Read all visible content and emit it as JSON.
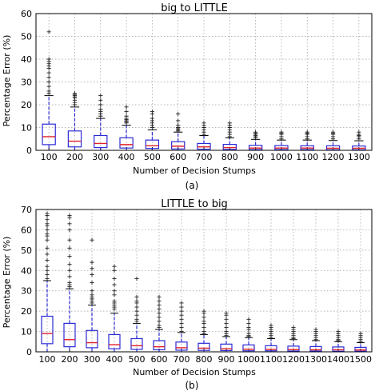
{
  "figure": {
    "caption_a": "(a)",
    "caption_b": "(b)"
  },
  "chart_data": [
    {
      "type": "box",
      "title": "big to LITTLE",
      "xlabel": "Number of Decision Stumps",
      "ylabel": "Percentage Error (%)",
      "ylim": [
        0,
        60
      ],
      "yticks": [
        0,
        10,
        20,
        30,
        40,
        50,
        60
      ],
      "grid": "dotted",
      "categories": [
        "100",
        "200",
        "300",
        "400",
        "500",
        "600",
        "700",
        "800",
        "900",
        "1000",
        "1100",
        "1200",
        "1300"
      ],
      "boxes": [
        {
          "q1": 2.5,
          "median": 6.0,
          "q3": 11.5,
          "whisker_low": 0,
          "whisker_high": 24,
          "outliers": [
            25,
            26,
            28,
            30,
            32,
            34,
            36,
            37,
            38,
            39,
            40,
            52
          ]
        },
        {
          "q1": 1.5,
          "median": 4.0,
          "q3": 8.5,
          "whisker_low": 0,
          "whisker_high": 19,
          "outliers": [
            20,
            21,
            22,
            23,
            23.5,
            24,
            24.5,
            25
          ]
        },
        {
          "q1": 1.2,
          "median": 3.0,
          "q3": 6.5,
          "whisker_low": 0,
          "whisker_high": 14,
          "outliers": [
            15,
            16,
            17,
            18,
            20,
            22,
            24
          ]
        },
        {
          "q1": 1.0,
          "median": 2.5,
          "q3": 5.5,
          "whisker_low": 0,
          "whisker_high": 11,
          "outliers": [
            12,
            12.5,
            13,
            13.5,
            14,
            15,
            17,
            19
          ]
        },
        {
          "q1": 0.8,
          "median": 2.0,
          "q3": 4.5,
          "whisker_low": 0,
          "whisker_high": 9,
          "outliers": [
            10,
            11,
            12,
            13,
            14,
            16,
            17
          ]
        },
        {
          "q1": 0.6,
          "median": 1.8,
          "q3": 3.8,
          "whisker_low": 0,
          "whisker_high": 8,
          "outliers": [
            8.5,
            9,
            9.5,
            10,
            11,
            13,
            16
          ]
        },
        {
          "q1": 0.5,
          "median": 1.5,
          "q3": 3.0,
          "whisker_low": 0,
          "whisker_high": 6.5,
          "outliers": [
            7,
            8,
            9,
            10,
            11,
            12
          ]
        },
        {
          "q1": 0.4,
          "median": 1.2,
          "q3": 2.6,
          "whisker_low": 0,
          "whisker_high": 5.5,
          "outliers": [
            6,
            7,
            8,
            9,
            10,
            11,
            12
          ]
        },
        {
          "q1": 0.3,
          "median": 1.0,
          "q3": 2.2,
          "whisker_low": 0,
          "whisker_high": 4.8,
          "outliers": [
            5.5,
            6,
            6.5,
            7,
            7.5,
            8
          ]
        },
        {
          "q1": 0.3,
          "median": 1.0,
          "q3": 2.1,
          "whisker_low": 0,
          "whisker_high": 4.5,
          "outliers": [
            5,
            6,
            7,
            7.5,
            8
          ]
        },
        {
          "q1": 0.3,
          "median": 1.0,
          "q3": 2.0,
          "whisker_low": 0,
          "whisker_high": 4.5,
          "outliers": [
            5,
            6,
            7,
            7.5,
            8
          ]
        },
        {
          "q1": 0.2,
          "median": 0.9,
          "q3": 2.0,
          "whisker_low": 0,
          "whisker_high": 4.3,
          "outliers": [
            5,
            6,
            7,
            7.5,
            8
          ]
        },
        {
          "q1": 0.2,
          "median": 0.9,
          "q3": 1.9,
          "whisker_low": 0,
          "whisker_high": 4.2,
          "outliers": [
            5,
            6,
            6.5,
            7,
            8
          ]
        }
      ]
    },
    {
      "type": "box",
      "title": "LITTLE to big",
      "xlabel": "Number of Decision Stumps",
      "ylabel": "Percentage Error (%)",
      "ylim": [
        0,
        70
      ],
      "yticks": [
        0,
        10,
        20,
        30,
        40,
        50,
        60,
        70
      ],
      "grid": "dotted",
      "categories": [
        "100",
        "200",
        "300",
        "400",
        "500",
        "600",
        "700",
        "800",
        "900",
        "1000",
        "1100",
        "1200",
        "1300",
        "1400",
        "1500"
      ],
      "boxes": [
        {
          "q1": 4,
          "median": 9,
          "q3": 17.5,
          "whisker_low": 0,
          "whisker_high": 35,
          "outliers": [
            36,
            38,
            40,
            42,
            45,
            48,
            51,
            55,
            57,
            58,
            60,
            62,
            63,
            65,
            67,
            68
          ]
        },
        {
          "q1": 2.5,
          "median": 6,
          "q3": 14,
          "whisker_low": 0,
          "whisker_high": 31,
          "outliers": [
            32,
            33,
            34,
            37,
            40,
            43,
            47,
            51,
            55,
            60,
            63,
            66,
            67
          ]
        },
        {
          "q1": 2,
          "median": 4.5,
          "q3": 10.5,
          "whisker_low": 0,
          "whisker_high": 23,
          "outliers": [
            24,
            25,
            26,
            27,
            28,
            30,
            34,
            38,
            41,
            44,
            55
          ]
        },
        {
          "q1": 1.5,
          "median": 3.5,
          "q3": 8.5,
          "whisker_low": 0,
          "whisker_high": 19,
          "outliers": [
            21,
            22,
            23,
            24,
            25,
            28,
            30,
            33,
            36,
            40,
            42
          ]
        },
        {
          "q1": 1.2,
          "median": 3,
          "q3": 6.5,
          "whisker_low": 0,
          "whisker_high": 14,
          "outliers": [
            15,
            16,
            18,
            20,
            22,
            24,
            25,
            27,
            36
          ]
        },
        {
          "q1": 1,
          "median": 2.5,
          "q3": 5.5,
          "whisker_low": 0,
          "whisker_high": 11,
          "outliers": [
            12,
            13,
            15,
            17,
            19,
            21,
            23,
            25,
            27
          ]
        },
        {
          "q1": 0.8,
          "median": 2,
          "q3": 4.8,
          "whisker_low": 0,
          "whisker_high": 9.5,
          "outliers": [
            10,
            12,
            14,
            16,
            18,
            20,
            22,
            24
          ]
        },
        {
          "q1": 0.7,
          "median": 1.8,
          "q3": 4.2,
          "whisker_low": 0,
          "whisker_high": 8.5,
          "outliers": [
            9,
            10,
            12,
            14,
            15,
            17,
            19,
            20
          ]
        },
        {
          "q1": 0.6,
          "median": 1.5,
          "q3": 3.8,
          "whisker_low": 0,
          "whisker_high": 7.5,
          "outliers": [
            8,
            9,
            10,
            12,
            14,
            16,
            18,
            19
          ]
        },
        {
          "q1": 0.5,
          "median": 1.3,
          "q3": 3.4,
          "whisker_low": 0,
          "whisker_high": 7,
          "outliers": [
            7.5,
            8,
            9,
            11,
            12,
            14,
            16
          ]
        },
        {
          "q1": 0.5,
          "median": 1.2,
          "q3": 3.0,
          "whisker_low": 0,
          "whisker_high": 6.5,
          "outliers": [
            7,
            8,
            9,
            10,
            11,
            12,
            13
          ]
        },
        {
          "q1": 0.4,
          "median": 1.1,
          "q3": 2.8,
          "whisker_low": 0,
          "whisker_high": 6,
          "outliers": [
            6.5,
            7,
            8,
            9,
            10,
            11,
            12
          ]
        },
        {
          "q1": 0.4,
          "median": 1.0,
          "q3": 2.6,
          "whisker_low": 0,
          "whisker_high": 5.5,
          "outliers": [
            6,
            7,
            8,
            9,
            10,
            11
          ]
        },
        {
          "q1": 0.3,
          "median": 1.0,
          "q3": 2.4,
          "whisker_low": 0,
          "whisker_high": 5,
          "outliers": [
            5.5,
            6,
            7,
            8,
            9,
            10
          ]
        },
        {
          "q1": 0.3,
          "median": 0.9,
          "q3": 2.2,
          "whisker_low": 0,
          "whisker_high": 4.5,
          "outliers": [
            5,
            6,
            7,
            8,
            9
          ]
        }
      ]
    }
  ],
  "colors": {
    "box": "#2b2bd6",
    "median": "#e0212b",
    "outlier": "#222222",
    "grid": "#9a9a9a",
    "axis": "#000000"
  }
}
